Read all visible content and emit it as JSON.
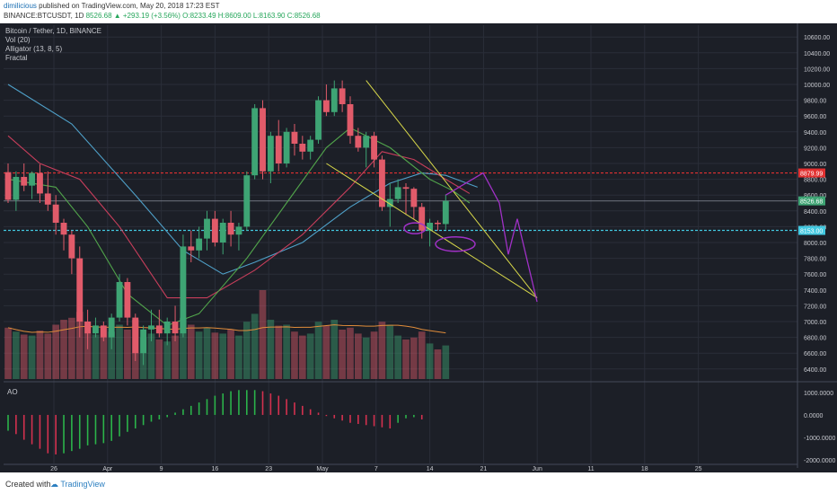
{
  "header": {
    "author": "dimilicious",
    "published": "published on TradingView.com, May 20, 2018 17:23 EST",
    "symbol": "BINANCE:BTCUSDT, 1D",
    "change": "8526.68 ▲ +293.19 (+3.56%)",
    "ohlc": "O:8233.49 H:8609.00 L:8163.90 C:8526.68"
  },
  "legend": {
    "title": "Bitcoin / Tether, 1D, BINANCE",
    "vol": "Vol (20)",
    "alligator": "Alligator (13, 8, 5)",
    "fractal": "Fractal"
  },
  "footer": {
    "created": "Created with",
    "brand": "TradingView"
  },
  "colors": {
    "background": "#1c1f27",
    "up": "#3ea474",
    "down": "#e15b6a",
    "jaw": "#4fa0c8",
    "teeth": "#c73e5b",
    "lips": "#51a44b",
    "trendline": "#d8d84a",
    "projection": "#a031c6",
    "resistance": "#e13131",
    "support": "#42c8e0"
  },
  "chart_data": {
    "type": "candlestick",
    "date_labels": [
      "26",
      "Apr",
      "9",
      "16",
      "23",
      "May",
      "7",
      "14",
      "21",
      "Jun",
      "11",
      "18",
      "25"
    ],
    "price_ticks": [
      "10600.00",
      "10400.00",
      "10200.00",
      "10000.00",
      "9800.00",
      "9600.00",
      "9400.00",
      "9200.00",
      "9000.00",
      "8800.00",
      "8600.00",
      "8400.00",
      "8200.00",
      "8000.00",
      "7800.00",
      "7600.00",
      "7400.00",
      "7200.00",
      "7000.00",
      "6800.00",
      "6600.00",
      "6400.00"
    ],
    "price_range": [
      6250,
      10750
    ],
    "ao_ticks": [
      "1000.0000",
      "0.0000",
      "-1000.0000",
      "-2000.0000"
    ],
    "ao_range": [
      -2150,
      1350
    ],
    "ao_label": "AO",
    "price_tags": [
      {
        "label": "8879.99",
        "value": 8879.99
      },
      {
        "label": "8526.68",
        "value": 8526.68
      },
      {
        "label": "8153.00",
        "value": 8153.0
      }
    ],
    "candles": [
      {
        "o": 8890,
        "h": 9000,
        "l": 8500,
        "c": 8540
      },
      {
        "o": 8540,
        "h": 8900,
        "l": 8400,
        "c": 8830
      },
      {
        "o": 8830,
        "h": 9000,
        "l": 8650,
        "c": 8720
      },
      {
        "o": 8720,
        "h": 8900,
        "l": 8550,
        "c": 8880
      },
      {
        "o": 8880,
        "h": 8990,
        "l": 8500,
        "c": 8620
      },
      {
        "o": 8620,
        "h": 8900,
        "l": 8400,
        "c": 8480
      },
      {
        "o": 8480,
        "h": 8600,
        "l": 8100,
        "c": 8250
      },
      {
        "o": 8250,
        "h": 8300,
        "l": 7900,
        "c": 8100
      },
      {
        "o": 8100,
        "h": 8150,
        "l": 7600,
        "c": 7800
      },
      {
        "o": 7800,
        "h": 7950,
        "l": 6800,
        "c": 7000
      },
      {
        "o": 7000,
        "h": 7150,
        "l": 6650,
        "c": 6850
      },
      {
        "o": 6850,
        "h": 7050,
        "l": 6800,
        "c": 6950
      },
      {
        "o": 6950,
        "h": 7000,
        "l": 6750,
        "c": 6800
      },
      {
        "o": 6800,
        "h": 7100,
        "l": 6650,
        "c": 7050
      },
      {
        "o": 7050,
        "h": 7600,
        "l": 7000,
        "c": 7500
      },
      {
        "o": 7500,
        "h": 7550,
        "l": 6950,
        "c": 7050
      },
      {
        "o": 7050,
        "h": 7100,
        "l": 6500,
        "c": 6600
      },
      {
        "o": 6600,
        "h": 6950,
        "l": 6450,
        "c": 6900
      },
      {
        "o": 6900,
        "h": 7150,
        "l": 6750,
        "c": 6950
      },
      {
        "o": 6950,
        "h": 7150,
        "l": 6800,
        "c": 6850
      },
      {
        "o": 6850,
        "h": 7050,
        "l": 6700,
        "c": 7000
      },
      {
        "o": 7000,
        "h": 7200,
        "l": 6750,
        "c": 6850
      },
      {
        "o": 6850,
        "h": 8100,
        "l": 6800,
        "c": 7950
      },
      {
        "o": 7950,
        "h": 8150,
        "l": 7750,
        "c": 7900
      },
      {
        "o": 7900,
        "h": 8200,
        "l": 7800,
        "c": 8050
      },
      {
        "o": 8050,
        "h": 8400,
        "l": 7900,
        "c": 8300
      },
      {
        "o": 8300,
        "h": 8400,
        "l": 7950,
        "c": 8000
      },
      {
        "o": 8000,
        "h": 8300,
        "l": 7850,
        "c": 8250
      },
      {
        "o": 8250,
        "h": 8400,
        "l": 7950,
        "c": 8100
      },
      {
        "o": 8100,
        "h": 8250,
        "l": 7900,
        "c": 8200
      },
      {
        "o": 8200,
        "h": 8900,
        "l": 8150,
        "c": 8850
      },
      {
        "o": 8850,
        "h": 9750,
        "l": 8800,
        "c": 9700
      },
      {
        "o": 9700,
        "h": 9800,
        "l": 8800,
        "c": 8900
      },
      {
        "o": 8900,
        "h": 9400,
        "l": 8750,
        "c": 9350
      },
      {
        "o": 9350,
        "h": 9550,
        "l": 8900,
        "c": 9000
      },
      {
        "o": 9000,
        "h": 9450,
        "l": 8950,
        "c": 9400
      },
      {
        "o": 9400,
        "h": 9500,
        "l": 9100,
        "c": 9250
      },
      {
        "o": 9250,
        "h": 9350,
        "l": 9050,
        "c": 9150
      },
      {
        "o": 9150,
        "h": 9350,
        "l": 9050,
        "c": 9300
      },
      {
        "o": 9300,
        "h": 9850,
        "l": 9250,
        "c": 9800
      },
      {
        "o": 9800,
        "h": 10000,
        "l": 9600,
        "c": 9650
      },
      {
        "o": 9650,
        "h": 10050,
        "l": 9600,
        "c": 9950
      },
      {
        "o": 9950,
        "h": 10050,
        "l": 9650,
        "c": 9750
      },
      {
        "o": 9750,
        "h": 9850,
        "l": 9250,
        "c": 9350
      },
      {
        "o": 9350,
        "h": 9450,
        "l": 9150,
        "c": 9200
      },
      {
        "o": 9200,
        "h": 9400,
        "l": 8950,
        "c": 9350
      },
      {
        "o": 9350,
        "h": 9400,
        "l": 8950,
        "c": 9050
      },
      {
        "o": 9050,
        "h": 9100,
        "l": 8400,
        "c": 8450
      },
      {
        "o": 8450,
        "h": 8750,
        "l": 8200,
        "c": 8550
      },
      {
        "o": 8550,
        "h": 8800,
        "l": 8500,
        "c": 8700
      },
      {
        "o": 8700,
        "h": 8750,
        "l": 8350,
        "c": 8680
      },
      {
        "o": 8680,
        "h": 8700,
        "l": 8300,
        "c": 8450
      },
      {
        "o": 8450,
        "h": 8500,
        "l": 8050,
        "c": 8150
      },
      {
        "o": 8150,
        "h": 8300,
        "l": 7950,
        "c": 8250
      },
      {
        "o": 8250,
        "h": 8280,
        "l": 8150,
        "c": 8233.49
      },
      {
        "o": 8233.49,
        "h": 8609,
        "l": 8163.9,
        "c": 8526.68
      }
    ],
    "volume": [
      52,
      48,
      45,
      44,
      49,
      46,
      55,
      60,
      62,
      68,
      58,
      45,
      52,
      48,
      55,
      50,
      60,
      42,
      46,
      40,
      38,
      44,
      62,
      55,
      48,
      52,
      47,
      46,
      50,
      44,
      58,
      66,
      90,
      60,
      54,
      55,
      48,
      44,
      46,
      58,
      54,
      60,
      50,
      52,
      46,
      42,
      48,
      58,
      55,
      44,
      40,
      42,
      48,
      36,
      30,
      34
    ],
    "alligator": {
      "jaw": [
        {
          "x": 0,
          "y": 10000
        },
        {
          "x": 8,
          "y": 9500
        },
        {
          "x": 16,
          "y": 8600
        },
        {
          "x": 22,
          "y": 7900
        },
        {
          "x": 27,
          "y": 7600
        },
        {
          "x": 31,
          "y": 7750
        },
        {
          "x": 37,
          "y": 8000
        },
        {
          "x": 43,
          "y": 8450
        },
        {
          "x": 48,
          "y": 8750
        },
        {
          "x": 52,
          "y": 8880
        },
        {
          "x": 55,
          "y": 8850
        },
        {
          "x": 59,
          "y": 8700
        }
      ],
      "teeth": [
        {
          "x": 0,
          "y": 9350
        },
        {
          "x": 4,
          "y": 9000
        },
        {
          "x": 9,
          "y": 8800
        },
        {
          "x": 14,
          "y": 8200
        },
        {
          "x": 20,
          "y": 7300
        },
        {
          "x": 25,
          "y": 7300
        },
        {
          "x": 31,
          "y": 7650
        },
        {
          "x": 37,
          "y": 8100
        },
        {
          "x": 43,
          "y": 8700
        },
        {
          "x": 47,
          "y": 9150
        },
        {
          "x": 51,
          "y": 9050
        },
        {
          "x": 55,
          "y": 8800
        },
        {
          "x": 58,
          "y": 8620
        }
      ],
      "lips": [
        {
          "x": 0,
          "y": 8800
        },
        {
          "x": 6,
          "y": 8700
        },
        {
          "x": 10,
          "y": 8200
        },
        {
          "x": 15,
          "y": 7350
        },
        {
          "x": 20,
          "y": 6950
        },
        {
          "x": 24,
          "y": 7100
        },
        {
          "x": 30,
          "y": 7800
        },
        {
          "x": 35,
          "y": 8500
        },
        {
          "x": 40,
          "y": 9200
        },
        {
          "x": 43,
          "y": 9450
        },
        {
          "x": 48,
          "y": 9200
        },
        {
          "x": 53,
          "y": 8800
        },
        {
          "x": 56,
          "y": 8650
        },
        {
          "x": 58,
          "y": 8500
        }
      ]
    },
    "ao": [
      -700,
      -850,
      -1100,
      -1300,
      -1500,
      -1700,
      -1750,
      -1700,
      -1600,
      -1500,
      -1350,
      -1300,
      -1250,
      -1150,
      -950,
      -750,
      -600,
      -450,
      -300,
      -200,
      -100,
      100,
      250,
      400,
      550,
      700,
      850,
      950,
      1050,
      1100,
      1100,
      1100,
      1050,
      950,
      850,
      700,
      550,
      400,
      250,
      100,
      -50,
      -150,
      -250,
      -350,
      -400,
      -450,
      -500,
      -550,
      -600,
      -350,
      -150,
      -100,
      -200
    ]
  }
}
